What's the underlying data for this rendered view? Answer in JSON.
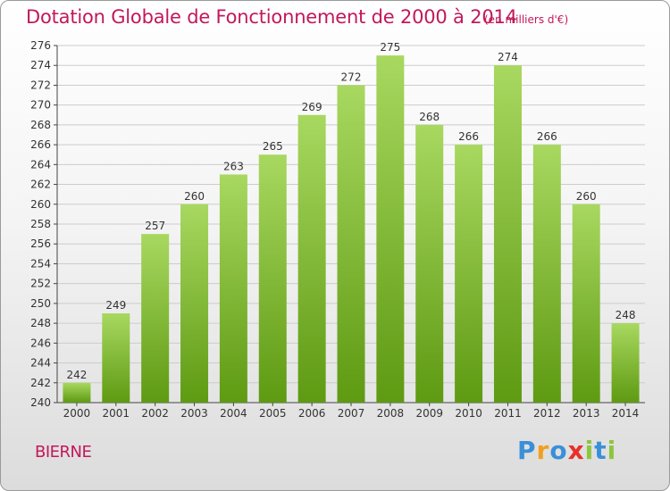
{
  "header": {
    "title": "Dotation Globale de Fonctionnement de 2000 à 2014",
    "unit": "(en milliers d'€)"
  },
  "footer": {
    "commune": "BIERNE",
    "logo": [
      "P",
      "r",
      "o",
      "x",
      "i",
      "t",
      "i"
    ],
    "logo_colors": [
      "#3b8fd9",
      "#f0a020",
      "#3b8fd9",
      "#e8302a",
      "#8cc63f",
      "#3b8fd9",
      "#8cc63f"
    ]
  },
  "colors": {
    "bar_light": "#a8d860",
    "bar_dark": "#5e9a12",
    "grid": "#cccccc",
    "title": "#c2185b"
  },
  "chart_data": {
    "type": "bar",
    "title": "Dotation Globale de Fonctionnement de 2000 à 2014",
    "subtitle": "(en milliers d'€)",
    "xlabel": "",
    "ylabel": "",
    "categories": [
      "2000",
      "2001",
      "2002",
      "2003",
      "2004",
      "2005",
      "2006",
      "2007",
      "2008",
      "2009",
      "2010",
      "2011",
      "2012",
      "2013",
      "2014"
    ],
    "values": [
      242,
      249,
      257,
      260,
      263,
      265,
      269,
      272,
      275,
      268,
      266,
      274,
      266,
      260,
      248
    ],
    "ylim": [
      240,
      276
    ],
    "ytick_step": 2,
    "yticks": [
      "240",
      "242",
      "244",
      "246",
      "248",
      "250",
      "252",
      "254",
      "256",
      "258",
      "260",
      "262",
      "264",
      "266",
      "268",
      "270",
      "272",
      "274",
      "276"
    ],
    "data_labels": [
      "242",
      "249",
      "257",
      "260",
      "263",
      "265",
      "269",
      "272",
      "275",
      "268",
      "266",
      "274",
      "266",
      "260",
      "248"
    ],
    "grid": true,
    "legend": "none"
  }
}
